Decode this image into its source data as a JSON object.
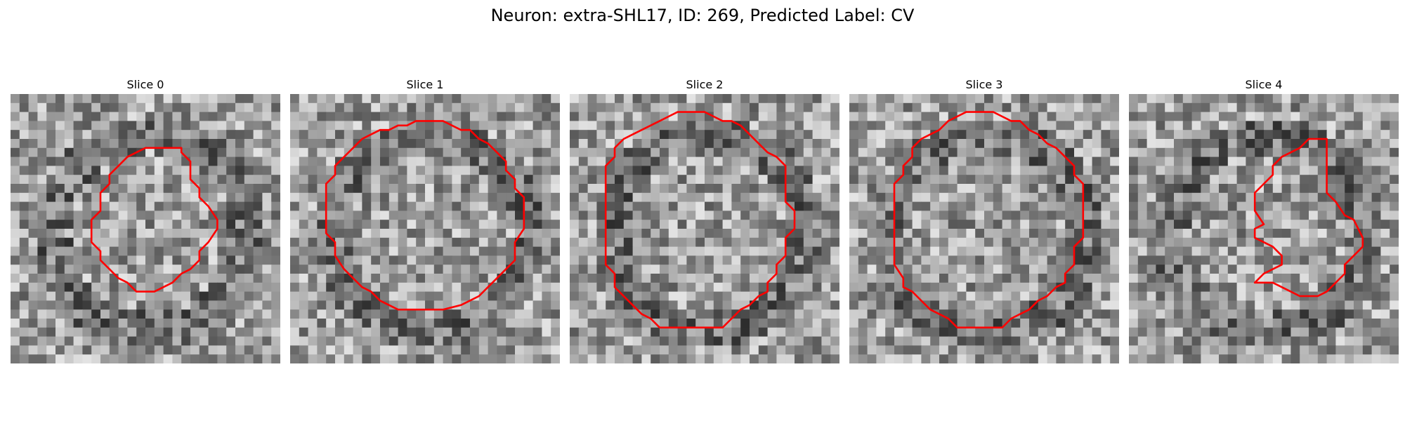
{
  "figure": {
    "title": "Neuron: extra-SHL17, ID: 269, Predicted Label: CV"
  },
  "colors": {
    "contour": "#ff0000"
  },
  "panels": [
    {
      "title": "Slice 0",
      "contour": [
        [
          18,
          6
        ],
        [
          19,
          6
        ],
        [
          19,
          6.5
        ],
        [
          20,
          7.5
        ],
        [
          20,
          8.5
        ],
        [
          20,
          9.5
        ],
        [
          21,
          10.5
        ],
        [
          21,
          11.5
        ],
        [
          22,
          12.5
        ],
        [
          23,
          14
        ],
        [
          23,
          15
        ],
        [
          22,
          16.5
        ],
        [
          21,
          17.5
        ],
        [
          21,
          18.5
        ],
        [
          20,
          19.5
        ],
        [
          19,
          20
        ],
        [
          18,
          21
        ],
        [
          17,
          21.5
        ],
        [
          16,
          22
        ],
        [
          15,
          22
        ],
        [
          14,
          22
        ],
        [
          13,
          21
        ],
        [
          12,
          20.5
        ],
        [
          11,
          19.5
        ],
        [
          10,
          18.5
        ],
        [
          10,
          17.5
        ],
        [
          9,
          16.5
        ],
        [
          9,
          15
        ],
        [
          9,
          14
        ],
        [
          10,
          13
        ],
        [
          10,
          12
        ],
        [
          10,
          11
        ],
        [
          11,
          10
        ],
        [
          11,
          9
        ],
        [
          12,
          8
        ],
        [
          13,
          7
        ],
        [
          14,
          6.5
        ],
        [
          15,
          6
        ],
        [
          16,
          6
        ],
        [
          17,
          6
        ]
      ],
      "seed": 1
    },
    {
      "title": "Slice 1",
      "contour": [
        [
          13,
          3.5
        ],
        [
          14,
          3
        ],
        [
          15,
          3
        ],
        [
          16,
          3
        ],
        [
          17,
          3
        ],
        [
          18,
          3.5
        ],
        [
          19,
          4
        ],
        [
          20,
          4
        ],
        [
          21,
          5
        ],
        [
          22,
          5.5
        ],
        [
          23,
          6.5
        ],
        [
          24,
          7.5
        ],
        [
          24,
          8.5
        ],
        [
          25,
          9.5
        ],
        [
          25,
          10.5
        ],
        [
          26,
          11.5
        ],
        [
          26,
          13
        ],
        [
          26,
          15
        ],
        [
          25,
          16.5
        ],
        [
          25,
          18.5
        ],
        [
          24,
          19.5
        ],
        [
          23,
          20.5
        ],
        [
          22,
          21.5
        ],
        [
          21,
          22.5
        ],
        [
          20,
          23
        ],
        [
          19,
          23.5
        ],
        [
          17,
          24
        ],
        [
          16,
          24
        ],
        [
          14,
          24
        ],
        [
          12,
          24
        ],
        [
          11,
          23.5
        ],
        [
          10,
          23
        ],
        [
          9,
          22
        ],
        [
          8,
          21.5
        ],
        [
          7,
          20.5
        ],
        [
          6,
          19.5
        ],
        [
          5,
          18
        ],
        [
          5,
          16.5
        ],
        [
          4,
          15.5
        ],
        [
          4,
          14
        ],
        [
          4,
          12
        ],
        [
          4,
          10
        ],
        [
          5,
          9
        ],
        [
          5,
          8
        ],
        [
          6,
          7
        ],
        [
          7,
          6
        ],
        [
          8,
          5
        ],
        [
          9,
          4.5
        ],
        [
          10,
          4
        ],
        [
          11,
          4
        ],
        [
          12,
          3.5
        ]
      ],
      "seed": 2
    },
    {
      "title": "Slice 2",
      "contour": [
        [
          10,
          3
        ],
        [
          11,
          2.5
        ],
        [
          12,
          2
        ],
        [
          13,
          2
        ],
        [
          14,
          2
        ],
        [
          15,
          2
        ],
        [
          16,
          2.5
        ],
        [
          17,
          3
        ],
        [
          18,
          3
        ],
        [
          19,
          3.5
        ],
        [
          20,
          4.5
        ],
        [
          21,
          5.5
        ],
        [
          22,
          6.5
        ],
        [
          23,
          7
        ],
        [
          24,
          8
        ],
        [
          24,
          10
        ],
        [
          24,
          12
        ],
        [
          25,
          13
        ],
        [
          25,
          15
        ],
        [
          24,
          16
        ],
        [
          24,
          18
        ],
        [
          23,
          19
        ],
        [
          23,
          20
        ],
        [
          22,
          21
        ],
        [
          22,
          22
        ],
        [
          21,
          22.5
        ],
        [
          20,
          23.5
        ],
        [
          19,
          24
        ],
        [
          18,
          25
        ],
        [
          17,
          26
        ],
        [
          16,
          26
        ],
        [
          15,
          26
        ],
        [
          14,
          26
        ],
        [
          13,
          26
        ],
        [
          12,
          26
        ],
        [
          11,
          26
        ],
        [
          10,
          26
        ],
        [
          9,
          25
        ],
        [
          8,
          24.5
        ],
        [
          7,
          23.5
        ],
        [
          6,
          22.5
        ],
        [
          5,
          21.5
        ],
        [
          5,
          20
        ],
        [
          4,
          19
        ],
        [
          4,
          17
        ],
        [
          4,
          15
        ],
        [
          4,
          12
        ],
        [
          4,
          10
        ],
        [
          4,
          8
        ],
        [
          5,
          7
        ],
        [
          5,
          6
        ],
        [
          6,
          5
        ],
        [
          7,
          4.5
        ],
        [
          8,
          4
        ],
        [
          9,
          3.5
        ]
      ],
      "seed": 3
    },
    {
      "title": "Slice 3",
      "contour": [
        [
          11,
          3
        ],
        [
          12,
          2.5
        ],
        [
          13,
          2
        ],
        [
          14,
          2
        ],
        [
          15,
          2
        ],
        [
          16,
          2
        ],
        [
          17,
          2.5
        ],
        [
          18,
          3
        ],
        [
          19,
          3
        ],
        [
          20,
          4
        ],
        [
          21,
          4.5
        ],
        [
          22,
          5.5
        ],
        [
          23,
          6
        ],
        [
          24,
          7
        ],
        [
          25,
          8
        ],
        [
          25,
          9
        ],
        [
          26,
          10
        ],
        [
          26,
          12
        ],
        [
          26,
          14
        ],
        [
          26,
          16
        ],
        [
          25,
          17
        ],
        [
          25,
          19
        ],
        [
          24,
          20
        ],
        [
          24,
          21
        ],
        [
          23,
          21.5
        ],
        [
          22,
          22.5
        ],
        [
          21,
          23
        ],
        [
          20,
          24
        ],
        [
          19,
          24.5
        ],
        [
          18,
          25
        ],
        [
          17,
          26
        ],
        [
          16,
          26
        ],
        [
          15,
          26
        ],
        [
          14,
          26
        ],
        [
          13,
          26
        ],
        [
          12,
          26
        ],
        [
          11,
          25
        ],
        [
          10,
          24.5
        ],
        [
          9,
          24
        ],
        [
          8,
          23
        ],
        [
          7,
          22
        ],
        [
          6,
          21.5
        ],
        [
          6,
          20.5
        ],
        [
          5,
          19
        ],
        [
          5,
          18
        ],
        [
          5,
          16
        ],
        [
          5,
          14
        ],
        [
          5,
          12
        ],
        [
          5,
          10
        ],
        [
          6,
          9
        ],
        [
          6,
          8
        ],
        [
          7,
          7
        ],
        [
          7,
          6
        ],
        [
          8,
          5
        ],
        [
          9,
          4.5
        ],
        [
          10,
          4
        ]
      ],
      "seed": 4
    },
    {
      "title": "Slice 4",
      "contour": [
        [
          20,
          5
        ],
        [
          21,
          5
        ],
        [
          22,
          5
        ],
        [
          22,
          6
        ],
        [
          22,
          7
        ],
        [
          22,
          8
        ],
        [
          22,
          9
        ],
        [
          22,
          10
        ],
        [
          22,
          11
        ],
        [
          23,
          12
        ],
        [
          24,
          13.5
        ],
        [
          25,
          14
        ],
        [
          26,
          16
        ],
        [
          26,
          17
        ],
        [
          25,
          18
        ],
        [
          24,
          19
        ],
        [
          24,
          20
        ],
        [
          23,
          21
        ],
        [
          22,
          22
        ],
        [
          21,
          22.5
        ],
        [
          20,
          22.5
        ],
        [
          19,
          22.5
        ],
        [
          18,
          22
        ],
        [
          17,
          21.5
        ],
        [
          16,
          21
        ],
        [
          15,
          21
        ],
        [
          14,
          21
        ],
        [
          15,
          20
        ],
        [
          16,
          19.5
        ],
        [
          17,
          19
        ],
        [
          17,
          18
        ],
        [
          16,
          17
        ],
        [
          15,
          16.5
        ],
        [
          14,
          16
        ],
        [
          14,
          15
        ],
        [
          15,
          14.5
        ],
        [
          14,
          13
        ],
        [
          14,
          12
        ],
        [
          14,
          11
        ],
        [
          15,
          10
        ],
        [
          16,
          9
        ],
        [
          16,
          8
        ],
        [
          17,
          7
        ],
        [
          18,
          6.5
        ],
        [
          19,
          6
        ]
      ],
      "seed": 5
    }
  ]
}
